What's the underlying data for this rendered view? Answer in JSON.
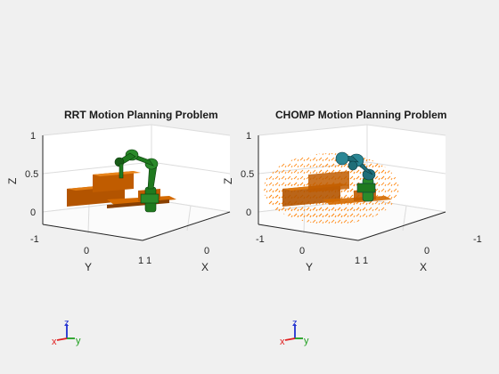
{
  "figure": {
    "background": "#f0f0f0",
    "panels": [
      {
        "title": "RRT Motion Planning Problem",
        "zlabel": "Z",
        "ylabel": "Y",
        "xlabel": "X",
        "zticks": [
          "1",
          "0.5",
          "0"
        ],
        "yticks": [
          "-1",
          "0",
          "1"
        ],
        "xticks": [
          "1",
          "0"
        ],
        "robot_color": "#1f7a1f",
        "table_color": "#d46a00"
      },
      {
        "title": "CHOMP Motion Planning Problem",
        "zlabel": "Z",
        "ylabel": "Y",
        "xlabel": "X",
        "zticks": [
          "1",
          "0.5",
          "0"
        ],
        "yticks": [
          "-1",
          "0",
          "1"
        ],
        "xticks": [
          "1",
          "0",
          "-1"
        ],
        "robot_color": "#1f6e78",
        "table_color": "#d46a00",
        "field_color": "#ff8c1a"
      }
    ],
    "triads": [
      {
        "x": "x",
        "y": "y",
        "z": "z"
      },
      {
        "x": "x",
        "y": "y",
        "z": "z"
      }
    ],
    "axis_colors": {
      "x": "#e02020",
      "y": "#20a020",
      "z": "#2030d0"
    }
  }
}
